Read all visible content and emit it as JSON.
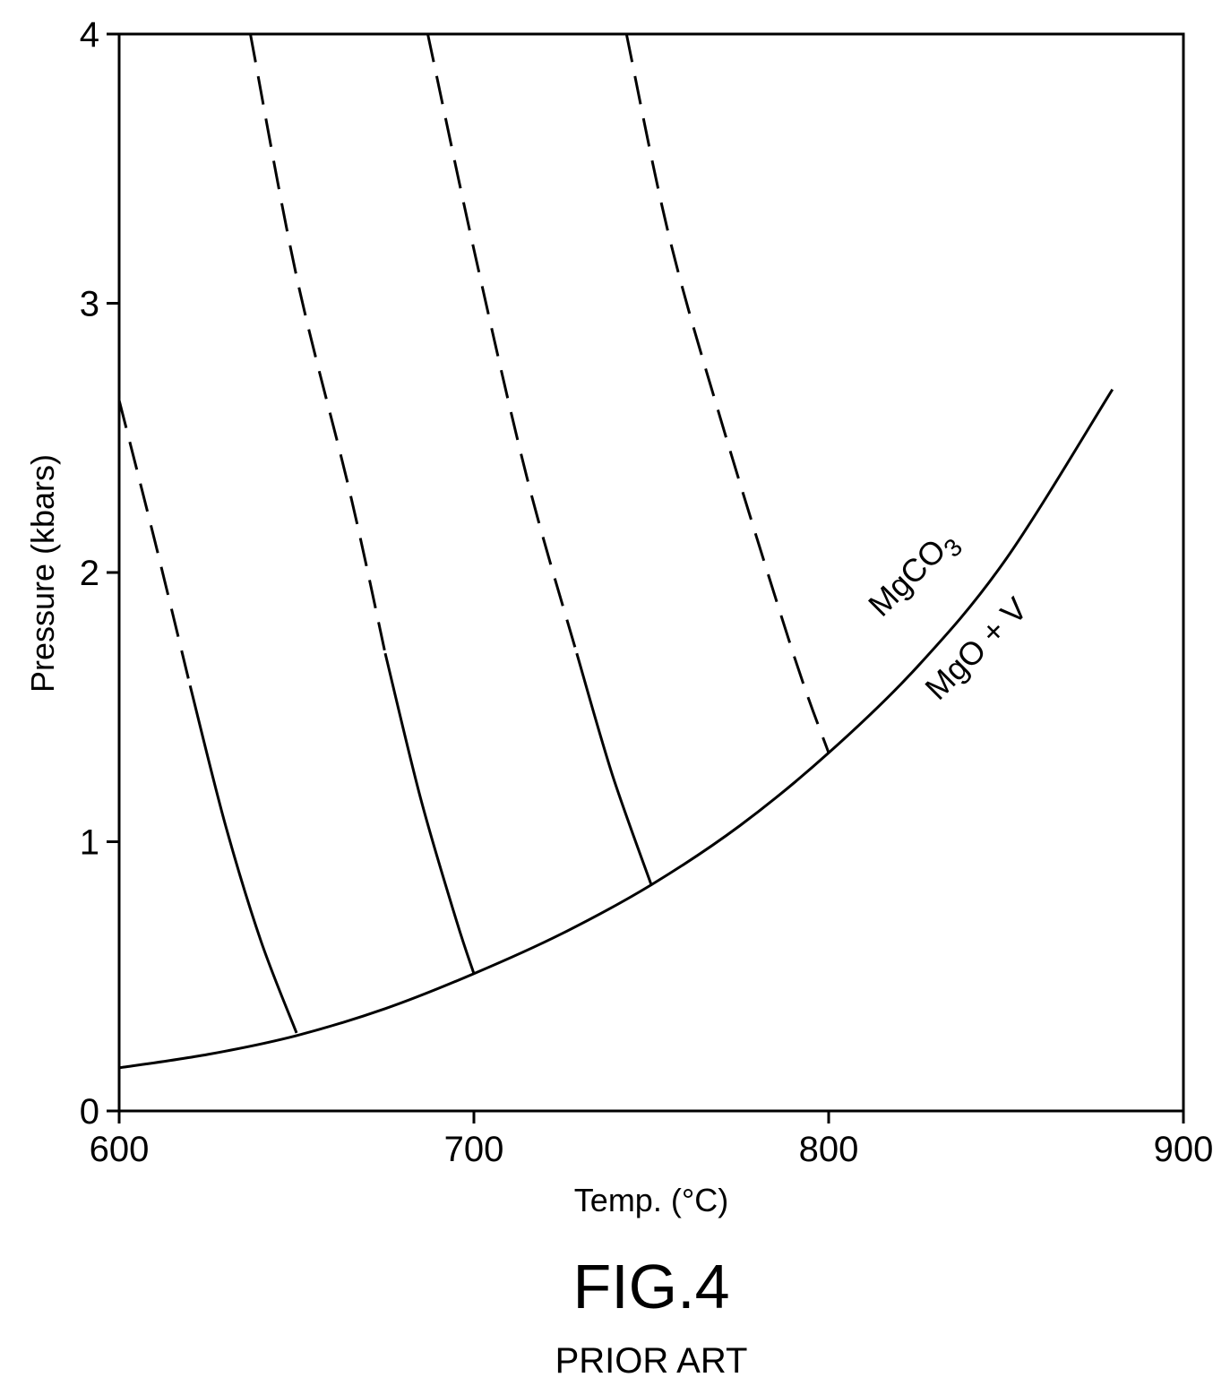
{
  "chart_data": {
    "type": "line",
    "title": "",
    "xlabel": "Temp. (°C)",
    "ylabel": "Pressure (kbars)",
    "xlim": [
      600,
      900
    ],
    "ylim": [
      0,
      4
    ],
    "x_ticks": [
      "600",
      "700",
      "800",
      "900"
    ],
    "y_ticks": [
      "0",
      "1",
      "2",
      "3",
      "4"
    ],
    "grid": false,
    "legend": "none",
    "series": [
      {
        "style": "solid",
        "x": [
          600,
          625,
          650,
          675,
          700,
          725,
          750,
          775,
          800,
          825,
          850,
          880
        ],
        "y": [
          0.16,
          0.21,
          0.28,
          0.38,
          0.51,
          0.66,
          0.84,
          1.06,
          1.33,
          1.65,
          2.05,
          2.68
        ]
      },
      {
        "style": "solid",
        "x": [
          620,
          630,
          640,
          650
        ],
        "y": [
          1.58,
          1.06,
          0.63,
          0.29
        ]
      },
      {
        "style": "dashed",
        "x": [
          600,
          610,
          620
        ],
        "y": [
          2.64,
          2.12,
          1.58
        ]
      },
      {
        "style": "solid",
        "x": [
          675,
          685,
          695,
          700
        ],
        "y": [
          1.7,
          1.16,
          0.71,
          0.51
        ]
      },
      {
        "style": "dashed",
        "x": [
          637,
          650,
          665,
          675
        ],
        "y": [
          4.0,
          3.1,
          2.3,
          1.7
        ]
      },
      {
        "style": "solid",
        "x": [
          729,
          739,
          750
        ],
        "y": [
          1.7,
          1.25,
          0.84
        ]
      },
      {
        "style": "dashed",
        "x": [
          687,
          700,
          715,
          729
        ],
        "y": [
          4.0,
          3.2,
          2.35,
          1.7
        ]
      },
      {
        "style": "dashed",
        "x": [
          743,
          755,
          770,
          790,
          800
        ],
        "y": [
          4.0,
          3.25,
          2.55,
          1.7,
          1.33
        ]
      }
    ],
    "annotations": [
      {
        "text": "MgCO",
        "subscript": "3",
        "x": 815,
        "y": 1.83
      },
      {
        "text": "MgO + V",
        "x": 831,
        "y": 1.52
      }
    ]
  },
  "caption": {
    "figure": "FIG.4",
    "note": "PRIOR ART"
  }
}
